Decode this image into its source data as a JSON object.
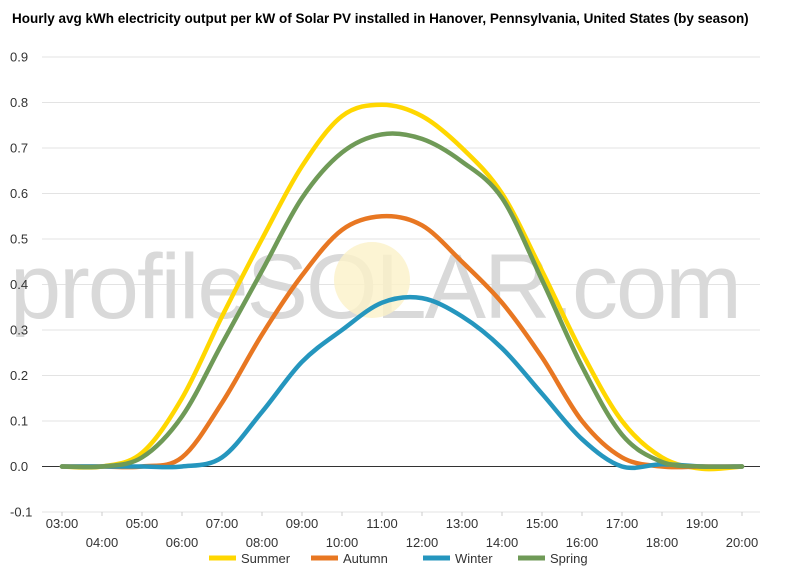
{
  "chart_data": {
    "type": "line",
    "title": "Hourly avg kWh electricity output per kW of Solar PV installed in Hanover, Pennsylvania, United States (by season)",
    "watermark": "profileSOLAR.com",
    "x": [
      "03:00",
      "04:00",
      "05:00",
      "06:00",
      "07:00",
      "08:00",
      "09:00",
      "10:00",
      "11:00",
      "12:00",
      "13:00",
      "14:00",
      "15:00",
      "16:00",
      "17:00",
      "18:00",
      "19:00",
      "20:00"
    ],
    "x_tick_rows": {
      "top": [
        "03:00",
        "05:00",
        "07:00",
        "09:00",
        "11:00",
        "13:00",
        "15:00",
        "17:00",
        "19:00"
      ],
      "bottom": [
        "04:00",
        "06:00",
        "08:00",
        "10:00",
        "12:00",
        "14:00",
        "16:00",
        "18:00",
        "20:00"
      ]
    },
    "ylim": [
      -0.1,
      0.9
    ],
    "yticks": [
      "-0.1",
      "0.0",
      "0.1",
      "0.2",
      "0.3",
      "0.4",
      "0.5",
      "0.6",
      "0.7",
      "0.8",
      "0.9"
    ],
    "grid": true,
    "legend_position": "bottom",
    "series": [
      {
        "name": "Summer",
        "color": "#ffd700",
        "values": [
          0.0,
          0.0,
          0.03,
          0.15,
          0.33,
          0.5,
          0.66,
          0.77,
          0.795,
          0.77,
          0.7,
          0.6,
          0.43,
          0.25,
          0.1,
          0.02,
          -0.005,
          0.0
        ]
      },
      {
        "name": "Autumn",
        "color": "#e87722",
        "values": [
          0.0,
          0.0,
          0.0,
          0.02,
          0.14,
          0.29,
          0.42,
          0.52,
          0.55,
          0.53,
          0.45,
          0.36,
          0.24,
          0.1,
          0.02,
          0.0,
          0.0,
          0.0
        ]
      },
      {
        "name": "Winter",
        "color": "#2596be",
        "values": [
          0.0,
          0.0,
          0.0,
          0.0,
          0.02,
          0.12,
          0.23,
          0.3,
          0.36,
          0.37,
          0.33,
          0.26,
          0.16,
          0.06,
          0.0,
          0.005,
          0.0,
          0.0
        ]
      },
      {
        "name": "Spring",
        "color": "#6f9a57",
        "values": [
          0.0,
          0.0,
          0.02,
          0.11,
          0.27,
          0.43,
          0.59,
          0.69,
          0.73,
          0.72,
          0.67,
          0.59,
          0.41,
          0.22,
          0.07,
          0.01,
          0.0,
          0.0
        ]
      }
    ]
  }
}
